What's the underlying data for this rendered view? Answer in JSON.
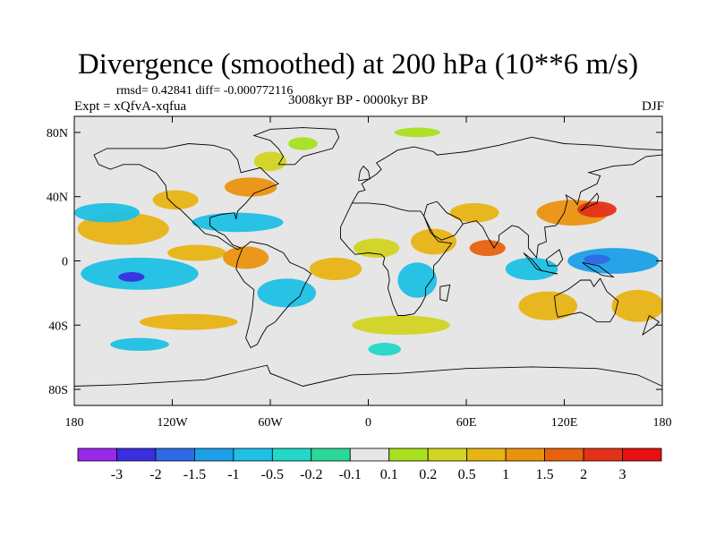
{
  "chart_data": {
    "type": "heatmap",
    "title": "Divergence (smoothed) at 200 hPa (10**6 m/s)",
    "stats": "rmsd= 0.42841 diff= -0.000772116",
    "experiment": "Expt = xQfvA-xqfua",
    "period": "3008kyr BP - 0000kyr BP",
    "season": "DJF",
    "xlim": [
      -180,
      180
    ],
    "ylim": [
      -90,
      90
    ],
    "x_ticks": [
      {
        "value": -180,
        "label": "180"
      },
      {
        "value": -120,
        "label": "120W"
      },
      {
        "value": -60,
        "label": "60W"
      },
      {
        "value": 0,
        "label": "0"
      },
      {
        "value": 60,
        "label": "60E"
      },
      {
        "value": 120,
        "label": "120E"
      },
      {
        "value": 180,
        "label": "180"
      }
    ],
    "y_ticks": [
      {
        "value": 80,
        "label": "80N"
      },
      {
        "value": 40,
        "label": "40N"
      },
      {
        "value": 0,
        "label": "0"
      },
      {
        "value": -40,
        "label": "40S"
      },
      {
        "value": -80,
        "label": "80S"
      }
    ],
    "colorbar": {
      "levels": [
        "-3",
        "-2",
        "-1.5",
        "-1",
        "-0.5",
        "-0.2",
        "-0.1",
        "0.1",
        "0.2",
        "0.5",
        "1",
        "1.5",
        "2",
        "3"
      ],
      "colors": [
        "#9a28e8",
        "#3a2ee0",
        "#2f6ae6",
        "#1c9fe8",
        "#1ec0e4",
        "#22d8c8",
        "#2ad89a",
        "#e6e6e6",
        "#a8e01e",
        "#d2d422",
        "#e8b414",
        "#ea9210",
        "#e8620e",
        "#e4321a",
        "#e81010"
      ]
    },
    "field_blobs": [
      {
        "lon": -150,
        "lat": 20,
        "rlon": 28,
        "rlat": 10,
        "level": 10
      },
      {
        "lon": -140,
        "lat": -8,
        "rlon": 36,
        "rlat": 10,
        "level": 4
      },
      {
        "lon": -145,
        "lat": -10,
        "rlon": 8,
        "rlat": 3,
        "level": 1
      },
      {
        "lon": -160,
        "lat": 30,
        "rlon": 20,
        "rlat": 6,
        "level": 4
      },
      {
        "lon": -118,
        "lat": 38,
        "rlon": 14,
        "rlat": 6,
        "level": 10
      },
      {
        "lon": -72,
        "lat": 46,
        "rlon": 16,
        "rlat": 6,
        "level": 11
      },
      {
        "lon": -60,
        "lat": 62,
        "rlon": 10,
        "rlat": 6,
        "level": 9
      },
      {
        "lon": -40,
        "lat": 73,
        "rlon": 9,
        "rlat": 4,
        "level": 8
      },
      {
        "lon": 30,
        "lat": 80,
        "rlon": 14,
        "rlat": 3,
        "level": 8
      },
      {
        "lon": -80,
        "lat": 24,
        "rlon": 28,
        "rlat": 6,
        "level": 4
      },
      {
        "lon": -105,
        "lat": 5,
        "rlon": 18,
        "rlat": 5,
        "level": 10
      },
      {
        "lon": -75,
        "lat": 2,
        "rlon": 14,
        "rlat": 7,
        "level": 11
      },
      {
        "lon": -50,
        "lat": -20,
        "rlon": 18,
        "rlat": 9,
        "level": 4
      },
      {
        "lon": -20,
        "lat": -5,
        "rlon": 16,
        "rlat": 7,
        "level": 10
      },
      {
        "lon": 5,
        "lat": 8,
        "rlon": 14,
        "rlat": 6,
        "level": 9
      },
      {
        "lon": 30,
        "lat": -12,
        "rlon": 12,
        "rlat": 11,
        "level": 4
      },
      {
        "lon": 40,
        "lat": 12,
        "rlon": 14,
        "rlat": 8,
        "level": 10
      },
      {
        "lon": 73,
        "lat": 8,
        "rlon": 11,
        "rlat": 5,
        "level": 12
      },
      {
        "lon": 65,
        "lat": 30,
        "rlon": 15,
        "rlat": 6,
        "level": 10
      },
      {
        "lon": 125,
        "lat": 30,
        "rlon": 22,
        "rlat": 8,
        "level": 11
      },
      {
        "lon": 140,
        "lat": 32,
        "rlon": 12,
        "rlat": 5,
        "level": 13
      },
      {
        "lon": 150,
        "lat": 0,
        "rlon": 28,
        "rlat": 8,
        "level": 3
      },
      {
        "lon": 140,
        "lat": 1,
        "rlon": 8,
        "rlat": 3,
        "level": 2
      },
      {
        "lon": 100,
        "lat": -5,
        "rlon": 16,
        "rlat": 7,
        "level": 4
      },
      {
        "lon": 110,
        "lat": -28,
        "rlon": 18,
        "rlat": 9,
        "level": 10
      },
      {
        "lon": 165,
        "lat": -28,
        "rlon": 16,
        "rlat": 10,
        "level": 10
      },
      {
        "lon": -110,
        "lat": -38,
        "rlon": 30,
        "rlat": 5,
        "level": 10
      },
      {
        "lon": 20,
        "lat": -40,
        "rlon": 30,
        "rlat": 6,
        "level": 9
      },
      {
        "lon": -140,
        "lat": -52,
        "rlon": 18,
        "rlat": 4,
        "level": 4
      },
      {
        "lon": 10,
        "lat": -55,
        "rlon": 10,
        "rlat": 4,
        "level": 5
      }
    ]
  }
}
